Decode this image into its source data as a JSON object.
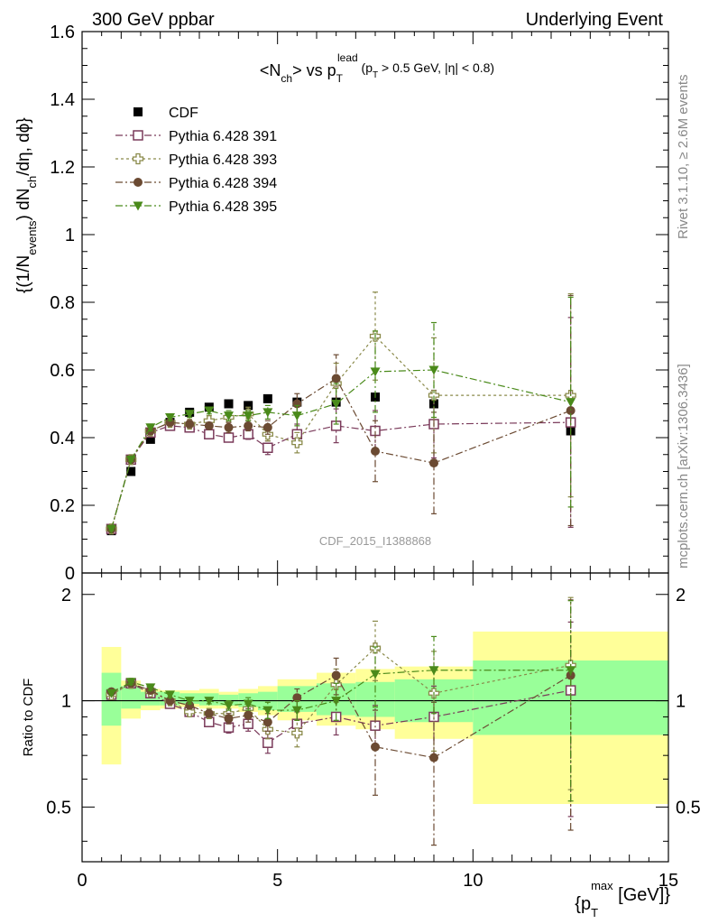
{
  "header": {
    "left": "300 GeV ppbar",
    "right": "Underlying Event"
  },
  "side": {
    "rivet": "Rivet 3.1.10, ≥ 2.6M events",
    "mcplots": "mcplots.cern.ch [arXiv:1306.3436]"
  },
  "watermark": "CDF_2015_I1388868",
  "chart_data": {
    "type": "scatter",
    "title": "<N_ch> vs p_T^lead (p_T > 0.5 GeV, |η| < 0.8)",
    "ylabel": "{(1/N_events) dN_ch/dη, dϕ}",
    "xlabel": "{p_T^max [GeV]}",
    "ratio_ylabel": "Ratio to CDF",
    "xlim": [
      0,
      15
    ],
    "ylim": [
      0,
      1.6
    ],
    "ratio_ylim": [
      0.35,
      2.3
    ],
    "x_ticks": [
      "0",
      "5",
      "10",
      "15"
    ],
    "y_ticks": [
      "0",
      "0.2",
      "0.4",
      "0.6",
      "0.8",
      "1",
      "1.2",
      "1.4",
      "1.6"
    ],
    "ratio_ticks": [
      "0.5",
      "1",
      "2"
    ],
    "legend_position": "top-left",
    "bins": [
      0.5,
      1.0,
      1.5,
      2.0,
      2.5,
      3.0,
      3.5,
      4.0,
      4.5,
      5.0,
      6.0,
      7.0,
      8.0,
      10.0,
      15.0
    ],
    "x": [
      0.75,
      1.25,
      1.75,
      2.25,
      2.75,
      3.25,
      3.75,
      4.25,
      4.75,
      5.5,
      6.5,
      7.5,
      9.0,
      12.5
    ],
    "band_inner": [
      [
        0.85,
        1.2
      ],
      [
        0.95,
        1.1
      ],
      [
        0.97,
        1.06
      ],
      [
        0.97,
        1.06
      ],
      [
        0.98,
        1.05
      ],
      [
        0.97,
        1.05
      ],
      [
        0.97,
        1.04
      ],
      [
        0.96,
        1.05
      ],
      [
        0.94,
        1.06
      ],
      [
        0.93,
        1.1
      ],
      [
        0.91,
        1.12
      ],
      [
        0.9,
        1.13
      ],
      [
        0.87,
        1.15
      ],
      [
        0.8,
        1.3
      ]
    ],
    "band_outer": [
      [
        0.66,
        1.42
      ],
      [
        0.89,
        1.14
      ],
      [
        0.94,
        1.08
      ],
      [
        0.95,
        1.07
      ],
      [
        0.96,
        1.07
      ],
      [
        0.95,
        1.08
      ],
      [
        0.95,
        1.06
      ],
      [
        0.93,
        1.08
      ],
      [
        0.91,
        1.1
      ],
      [
        0.88,
        1.15
      ],
      [
        0.85,
        1.2
      ],
      [
        0.83,
        1.23
      ],
      [
        0.78,
        1.25
      ],
      [
        0.51,
        1.57
      ]
    ],
    "series": [
      {
        "name": "CDF",
        "color": "#000000",
        "marker": "filled-square",
        "values": [
          0.125,
          0.3,
          0.395,
          0.445,
          0.475,
          0.49,
          0.5,
          0.495,
          0.515,
          0.505,
          0.505,
          0.52,
          0.5,
          0.42
        ],
        "errors": [
          0,
          0,
          0,
          0,
          0,
          0,
          0,
          0,
          0,
          0,
          0,
          0,
          0,
          0
        ]
      },
      {
        "name": "Pythia 6.428 391",
        "color": "#7a3a5a",
        "marker": "open-square",
        "dash": "8,3,2,3",
        "values": [
          0.13,
          0.335,
          0.415,
          0.435,
          0.43,
          0.41,
          0.4,
          0.41,
          0.37,
          0.41,
          0.435,
          0.42,
          0.44,
          0.445
        ],
        "errors": [
          0.005,
          0.005,
          0.01,
          0.01,
          0.01,
          0.01,
          0.01,
          0.015,
          0.02,
          0.03,
          0.05,
          0.06,
          0.1,
          0.31
        ],
        "ratio": [
          1.04,
          1.12,
          1.05,
          0.98,
          0.93,
          0.87,
          0.84,
          0.86,
          0.76,
          0.86,
          0.9,
          0.85,
          0.9,
          1.07
        ],
        "ratio_errors": [
          0.01,
          0.02,
          0.02,
          0.02,
          0.02,
          0.02,
          0.03,
          0.04,
          0.05,
          0.07,
          0.1,
          0.12,
          0.2,
          0.6
        ]
      },
      {
        "name": "Pythia 6.428 393",
        "color": "#8a8a4a",
        "marker": "open-cross",
        "dash": "3,3",
        "values": [
          0.13,
          0.335,
          0.42,
          0.445,
          0.44,
          0.45,
          0.46,
          0.47,
          0.41,
          0.385,
          0.56,
          0.7,
          0.525,
          0.525
        ],
        "errors": [
          0.005,
          0.005,
          0.01,
          0.01,
          0.01,
          0.015,
          0.015,
          0.02,
          0.02,
          0.03,
          0.06,
          0.13,
          0.17,
          0.3
        ],
        "ratio": [
          1.04,
          1.12,
          1.06,
          1.0,
          0.93,
          0.92,
          0.92,
          0.95,
          0.83,
          0.81,
          1.11,
          1.41,
          1.05,
          1.26
        ],
        "ratio_errors": [
          0.01,
          0.02,
          0.02,
          0.02,
          0.02,
          0.03,
          0.03,
          0.04,
          0.05,
          0.07,
          0.12,
          0.27,
          0.33,
          0.7
        ]
      },
      {
        "name": "Pythia 6.428 394",
        "color": "#6b4a32",
        "marker": "filled-circle",
        "dash": "8,3,2,3",
        "values": [
          0.13,
          0.335,
          0.42,
          0.445,
          0.44,
          0.435,
          0.43,
          0.435,
          0.43,
          0.5,
          0.575,
          0.36,
          0.325,
          0.48
        ],
        "errors": [
          0.005,
          0.005,
          0.01,
          0.01,
          0.01,
          0.01,
          0.015,
          0.015,
          0.02,
          0.03,
          0.07,
          0.09,
          0.15,
          0.34
        ],
        "ratio": [
          1.06,
          1.12,
          1.07,
          1.0,
          0.97,
          0.92,
          0.89,
          0.91,
          0.87,
          1.02,
          1.18,
          0.74,
          0.69,
          1.18
        ],
        "ratio_errors": [
          0.01,
          0.02,
          0.02,
          0.02,
          0.02,
          0.02,
          0.03,
          0.04,
          0.05,
          0.06,
          0.14,
          0.2,
          0.3,
          0.75
        ]
      },
      {
        "name": "Pythia 6.428 395",
        "color": "#4a8a1a",
        "marker": "filled-triangle-down",
        "dash": "8,3,2,3",
        "values": [
          0.13,
          0.335,
          0.43,
          0.46,
          0.47,
          0.48,
          0.465,
          0.465,
          0.475,
          0.465,
          0.5,
          0.595,
          0.6,
          0.505
        ],
        "errors": [
          0.005,
          0.005,
          0.01,
          0.01,
          0.01,
          0.01,
          0.015,
          0.015,
          0.02,
          0.03,
          0.06,
          0.12,
          0.14,
          0.31
        ],
        "ratio": [
          1.05,
          1.13,
          1.09,
          1.04,
          1.0,
          1.0,
          0.97,
          0.98,
          0.94,
          0.94,
          1.0,
          1.19,
          1.22,
          1.22
        ],
        "ratio_errors": [
          0.01,
          0.02,
          0.02,
          0.02,
          0.02,
          0.02,
          0.03,
          0.04,
          0.05,
          0.06,
          0.12,
          0.23,
          0.3,
          0.7
        ]
      }
    ]
  }
}
